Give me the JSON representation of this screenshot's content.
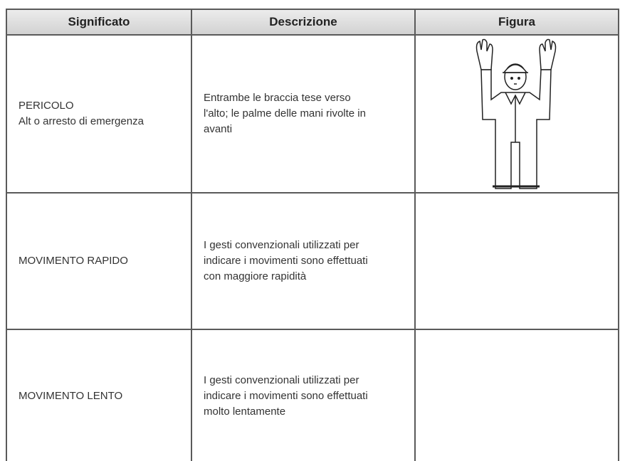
{
  "table": {
    "header": [
      "Significato",
      "Descrizione",
      "Figura"
    ],
    "rows": [
      {
        "meaning": [
          "PERICOLO",
          "Alt o arresto di emergenza"
        ],
        "description": [
          "Entrambe le braccia tese verso",
          "l'alto; le palme delle mani rivolte in",
          "avanti"
        ]
      },
      {
        "meaning": [
          "MOVIMENTO RAPIDO"
        ],
        "description": [
          "I gesti convenzionali utilizzati per",
          "indicare i movimenti sono effettuati",
          "con maggiore rapidità"
        ]
      },
      {
        "meaning": [
          "MOVIMENTO LENTO"
        ],
        "description": [
          "I gesti convenzionali utilizzati per",
          "indicare i movimenti sono effettuati",
          "molto lentamente"
        ]
      }
    ]
  }
}
